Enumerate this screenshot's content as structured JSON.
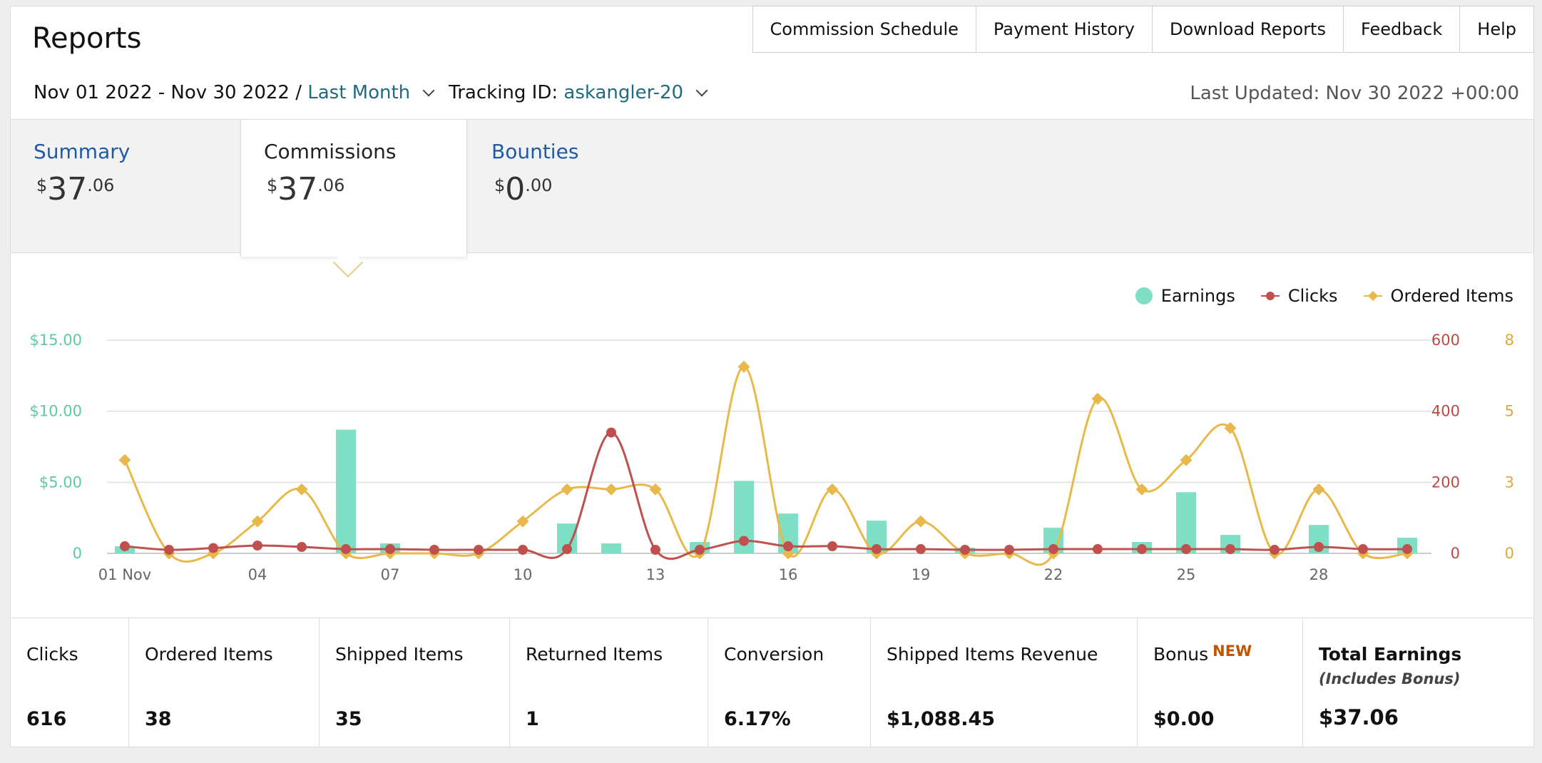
{
  "header": {
    "title": "Reports"
  },
  "nav": [
    {
      "label": "Commission Schedule",
      "name": "nav-commission-schedule"
    },
    {
      "label": "Payment History",
      "name": "nav-payment-history"
    },
    {
      "label": "Download Reports",
      "name": "nav-download-reports"
    },
    {
      "label": "Feedback",
      "name": "nav-feedback"
    },
    {
      "label": "Help",
      "name": "nav-help"
    }
  ],
  "filters": {
    "date_range": "Nov 01 2022 - Nov 30 2022 /",
    "period": "Last Month",
    "tracking_label": "Tracking ID:",
    "tracking_id": "askangler-20"
  },
  "last_updated": "Last Updated: Nov 30 2022 +00:00",
  "tabs": {
    "summary": {
      "label": "Summary",
      "currency": "$",
      "whole": "37",
      "cents": ".06"
    },
    "commissions": {
      "label": "Commissions",
      "currency": "$",
      "whole": "37",
      "cents": ".06"
    },
    "bounties": {
      "label": "Bounties",
      "currency": "$",
      "whole": "0",
      "cents": ".00"
    }
  },
  "legend": [
    {
      "label": "Earnings",
      "color": "#7fdfc4",
      "marker": "dot"
    },
    {
      "label": "Clicks",
      "color": "#c0504d",
      "marker": "circle-line"
    },
    {
      "label": "Ordered Items",
      "color": "#e8b94a",
      "marker": "diamond-line"
    }
  ],
  "chart_data": {
    "type": "bar",
    "x": [
      1,
      2,
      3,
      4,
      5,
      6,
      7,
      8,
      9,
      10,
      11,
      12,
      13,
      14,
      15,
      16,
      17,
      18,
      19,
      20,
      21,
      22,
      23,
      24,
      25,
      26,
      27,
      28,
      29,
      30
    ],
    "x_tick_labels": [
      {
        "x": 1,
        "label": "01 Nov"
      },
      {
        "x": 4,
        "label": "04"
      },
      {
        "x": 7,
        "label": "07"
      },
      {
        "x": 10,
        "label": "10"
      },
      {
        "x": 13,
        "label": "13"
      },
      {
        "x": 16,
        "label": "16"
      },
      {
        "x": 19,
        "label": "19"
      },
      {
        "x": 22,
        "label": "22"
      },
      {
        "x": 25,
        "label": "25"
      },
      {
        "x": 28,
        "label": "28"
      }
    ],
    "axes": {
      "left": {
        "ticks": [
          0,
          5,
          10,
          15
        ],
        "labels": [
          "0",
          "$5.00",
          "$10.00",
          "$15.00"
        ],
        "color": "#5fc9a3"
      },
      "right1": {
        "ticks": [
          0,
          200,
          400,
          600
        ],
        "labels": [
          "0",
          "200",
          "400",
          "600"
        ],
        "color": "#b84a46"
      },
      "right2": {
        "ticks": [
          0,
          3,
          5,
          8
        ],
        "labels": [
          "0",
          "3",
          "5",
          "8"
        ],
        "color": "#d9a93c"
      }
    },
    "series": [
      {
        "name": "Earnings",
        "type": "bar",
        "axis": "left",
        "color": "#7fdfc4",
        "values": [
          0.5,
          0,
          0,
          0,
          0,
          8.7,
          0.7,
          0,
          0,
          0,
          2.1,
          0.7,
          0,
          0.8,
          5.1,
          2.8,
          0,
          2.3,
          0,
          0.4,
          0,
          1.8,
          0,
          0.8,
          4.3,
          1.3,
          0,
          2.0,
          0,
          1.1
        ]
      },
      {
        "name": "Clicks",
        "type": "line",
        "axis": "right1",
        "color": "#c0504d",
        "values": [
          20,
          10,
          15,
          22,
          18,
          12,
          12,
          10,
          10,
          10,
          12,
          340,
          10,
          10,
          35,
          20,
          20,
          12,
          12,
          10,
          10,
          12,
          12,
          12,
          12,
          12,
          10,
          18,
          12,
          12
        ]
      },
      {
        "name": "Ordered Items",
        "type": "line",
        "axis": "right2",
        "color": "#e8b94a",
        "values": [
          3.5,
          0,
          0,
          1.2,
          2.4,
          0,
          0,
          0,
          0,
          1.2,
          2.4,
          2.4,
          2.4,
          0,
          7.0,
          0,
          2.4,
          0,
          1.2,
          0,
          0,
          0,
          5.8,
          2.4,
          3.5,
          4.7,
          0,
          2.4,
          0,
          0
        ]
      }
    ]
  },
  "stats": [
    {
      "label": "Clicks",
      "value": "616",
      "name": "stat-clicks"
    },
    {
      "label": "Ordered Items",
      "value": "38",
      "name": "stat-ordered-items"
    },
    {
      "label": "Shipped Items",
      "value": "35",
      "name": "stat-shipped-items"
    },
    {
      "label": "Returned Items",
      "value": "1",
      "name": "stat-returned-items"
    },
    {
      "label": "Conversion",
      "value": "6.17%",
      "name": "stat-conversion"
    },
    {
      "label": "Shipped Items Revenue",
      "value": "$1,088.45",
      "name": "stat-shipped-revenue"
    },
    {
      "label": "Bonus",
      "badge": "NEW",
      "value": "$0.00",
      "name": "stat-bonus"
    },
    {
      "label": "Total Earnings",
      "sub": "(Includes Bonus)",
      "value": "$37.06",
      "name": "stat-total-earnings"
    }
  ]
}
